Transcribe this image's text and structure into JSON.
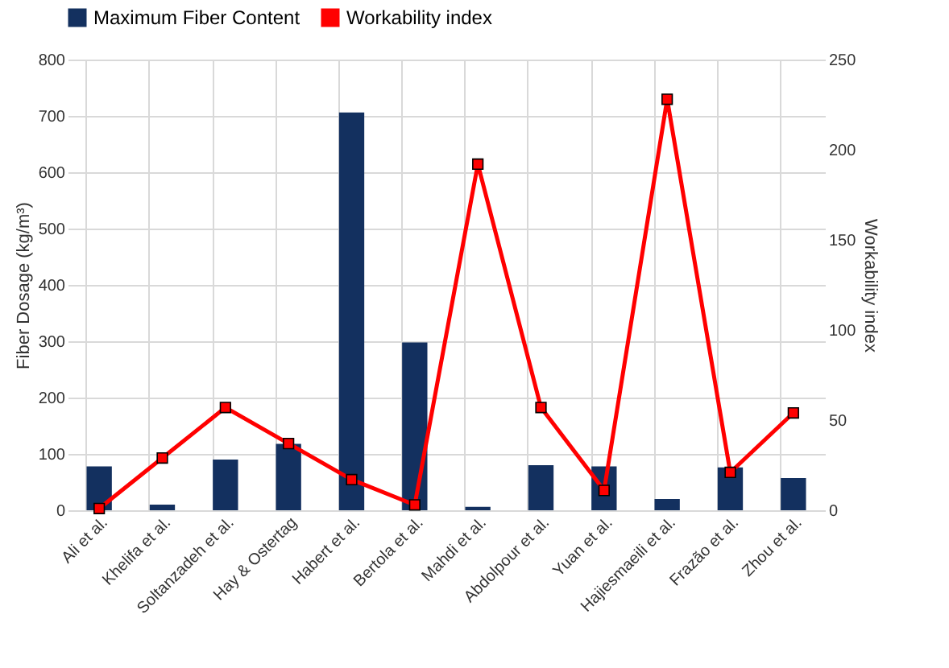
{
  "chart_data": {
    "type": "bar",
    "categories": [
      "Ali et al.",
      "Khelifa et al.",
      "Soltanzadeh et al.",
      "Hay & Ostertag",
      "Habert et al.",
      "Bertola et al.",
      "Mahdi et al.",
      "Abdolpour et al.",
      "Yuan et al.",
      "Hajiesmaeili et al.",
      "Frazão et al.",
      "Zhou et al."
    ],
    "series": [
      {
        "name": "Maximum Fiber Content",
        "color": "#13305f",
        "values": [
          78,
          10,
          90,
          118,
          706,
          298,
          6,
          80,
          78,
          20,
          76,
          57
        ]
      },
      {
        "name": "Workability index",
        "type": "line",
        "axis": "y2",
        "color": "#ff0000",
        "marker": "square",
        "values": [
          1,
          29,
          57,
          37,
          17,
          3,
          192,
          57,
          11,
          228,
          21,
          54
        ]
      }
    ],
    "ylabel": "Fiber Dosage (kg/m³)",
    "y2label": "Workability index",
    "ylim": [
      0,
      800
    ],
    "yticks": [
      0,
      100,
      200,
      300,
      400,
      500,
      600,
      700,
      800
    ],
    "y2lim": [
      0,
      250
    ],
    "y2ticks": [
      0,
      50,
      100,
      150,
      200,
      250
    ],
    "grid": true,
    "legend": "top"
  }
}
